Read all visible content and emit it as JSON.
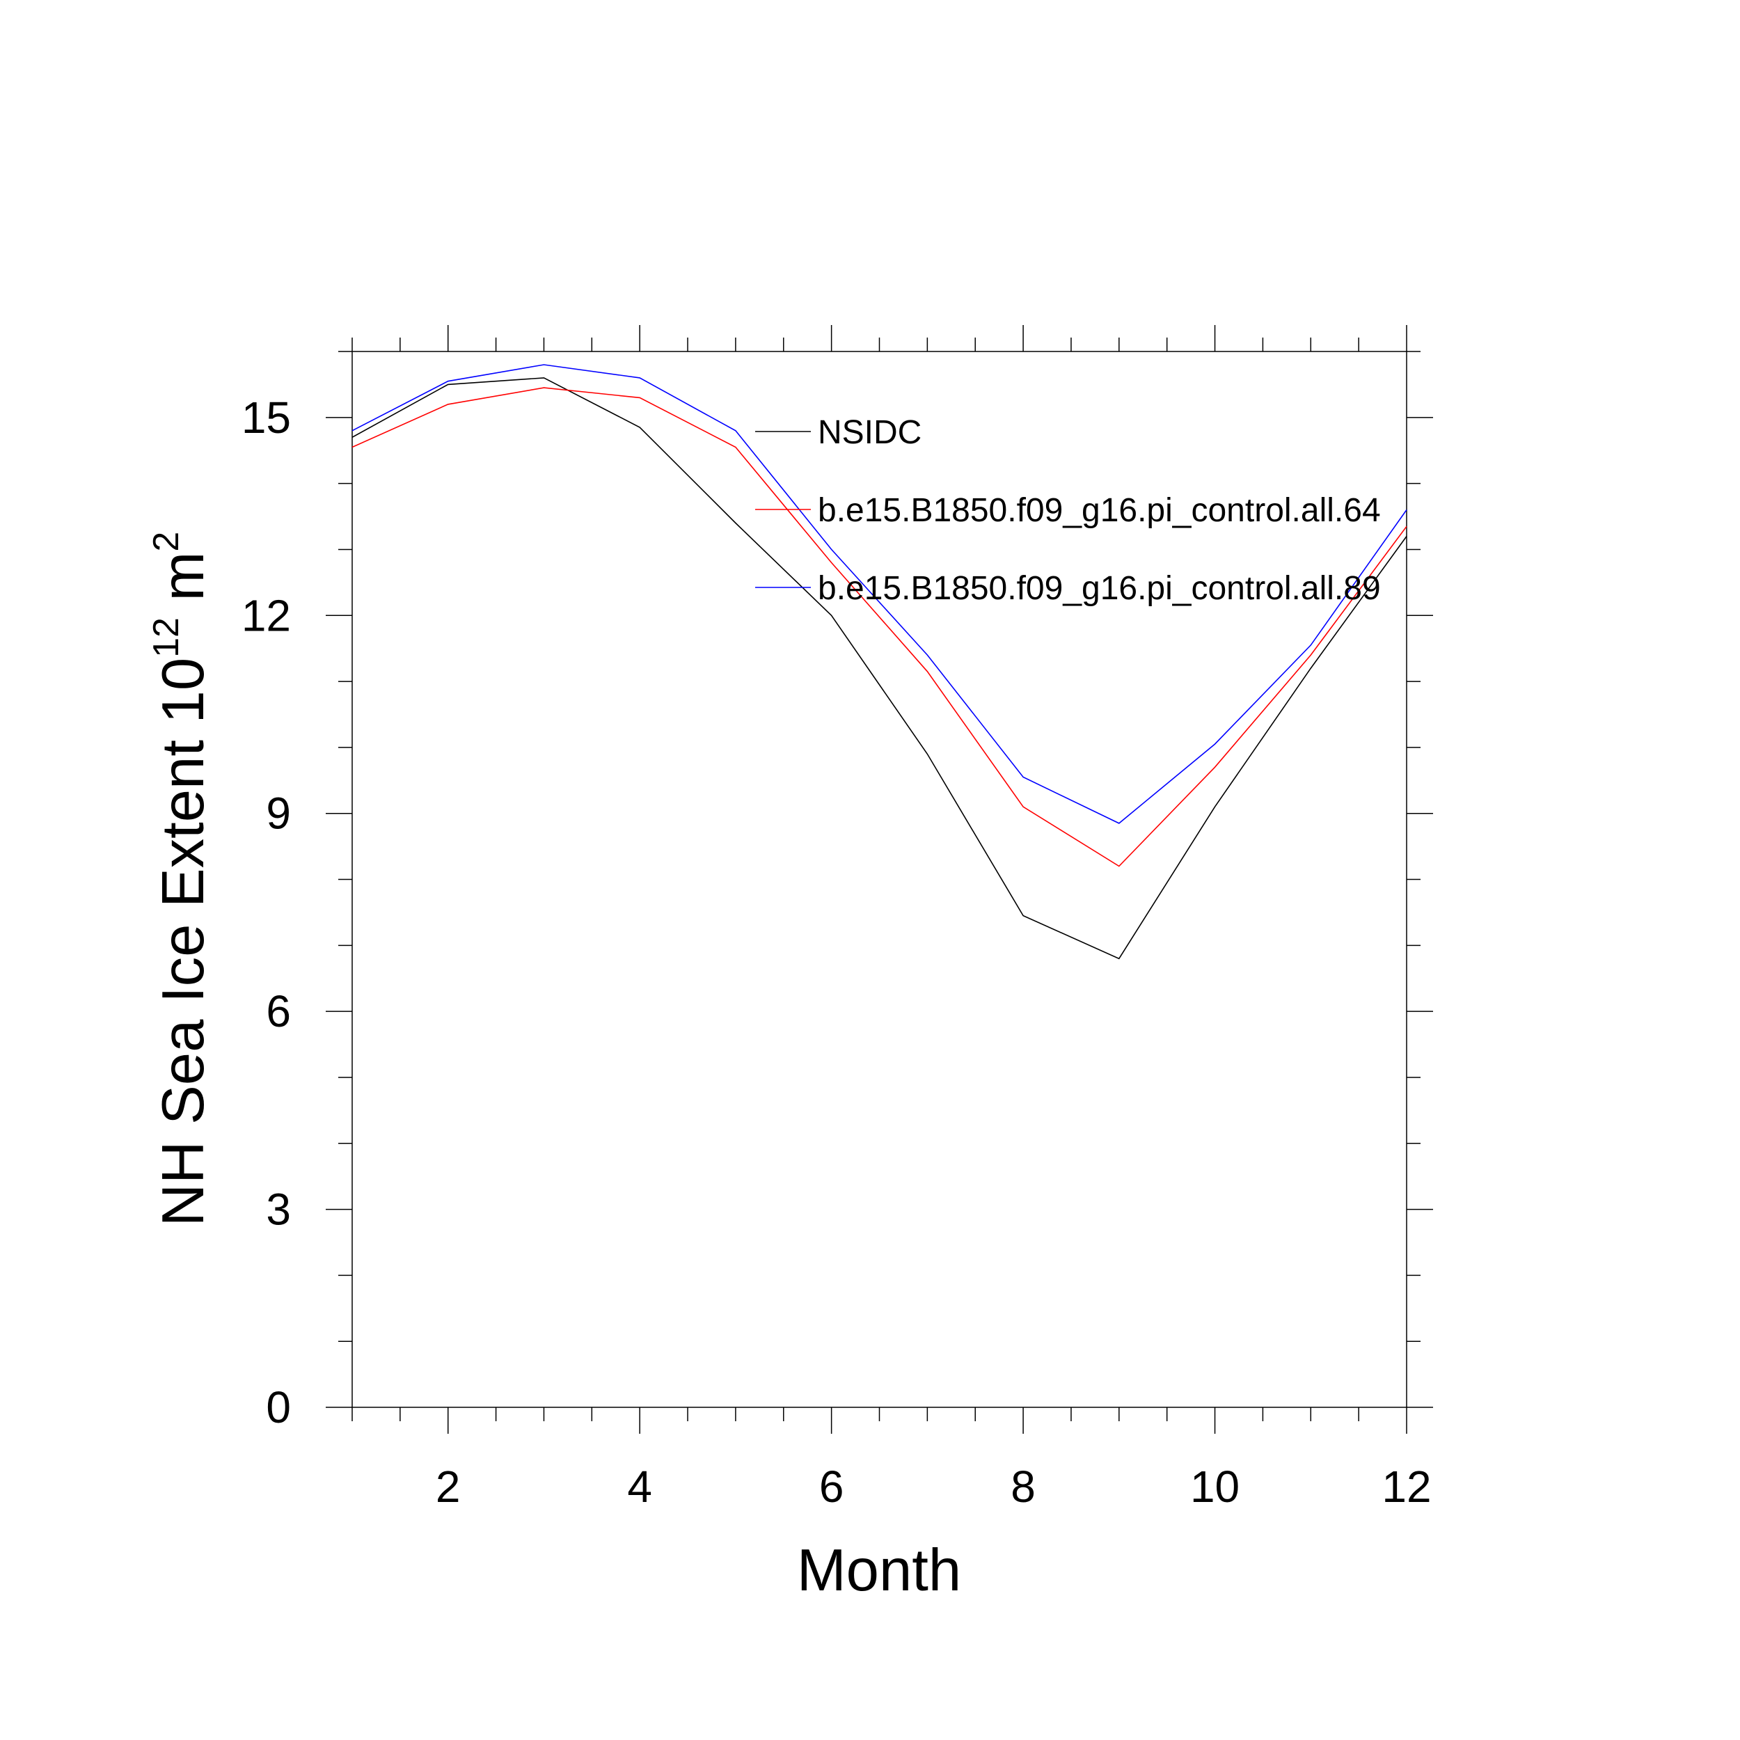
{
  "chart_data": {
    "type": "line",
    "title": "",
    "xlabel": "Month",
    "ylabel": "NH Sea Ice Extent 10",
    "ylabel_sup1": "12",
    "ylabel_unit": " m",
    "ylabel_sup2": "2",
    "xlim": [
      1,
      12
    ],
    "ylim": [
      0,
      16
    ],
    "xticks": [
      2,
      4,
      6,
      8,
      10,
      12
    ],
    "yticks": [
      0,
      3,
      6,
      9,
      12,
      15
    ],
    "x": [
      1,
      2,
      3,
      4,
      5,
      6,
      7,
      8,
      9,
      10,
      11,
      12
    ],
    "legend_position": "top-right",
    "grid": false,
    "series": [
      {
        "name": "NSIDC",
        "color": "#000000",
        "values": [
          14.7,
          15.5,
          15.6,
          14.85,
          13.4,
          12.0,
          9.9,
          7.45,
          6.8,
          9.1,
          11.2,
          13.2
        ]
      },
      {
        "name": "b.e15.B1850.f09_g16.pi_control.all.64",
        "color": "#ff0000",
        "values": [
          14.55,
          15.2,
          15.45,
          15.3,
          14.55,
          12.8,
          11.15,
          9.1,
          8.2,
          9.7,
          11.4,
          13.35
        ]
      },
      {
        "name": "b.e15.B1850.f09_g16.pi_control.all.89",
        "color": "#0000ff",
        "values": [
          14.8,
          15.55,
          15.8,
          15.6,
          14.8,
          13.0,
          11.4,
          9.55,
          8.85,
          10.05,
          11.55,
          13.6
        ]
      }
    ]
  }
}
